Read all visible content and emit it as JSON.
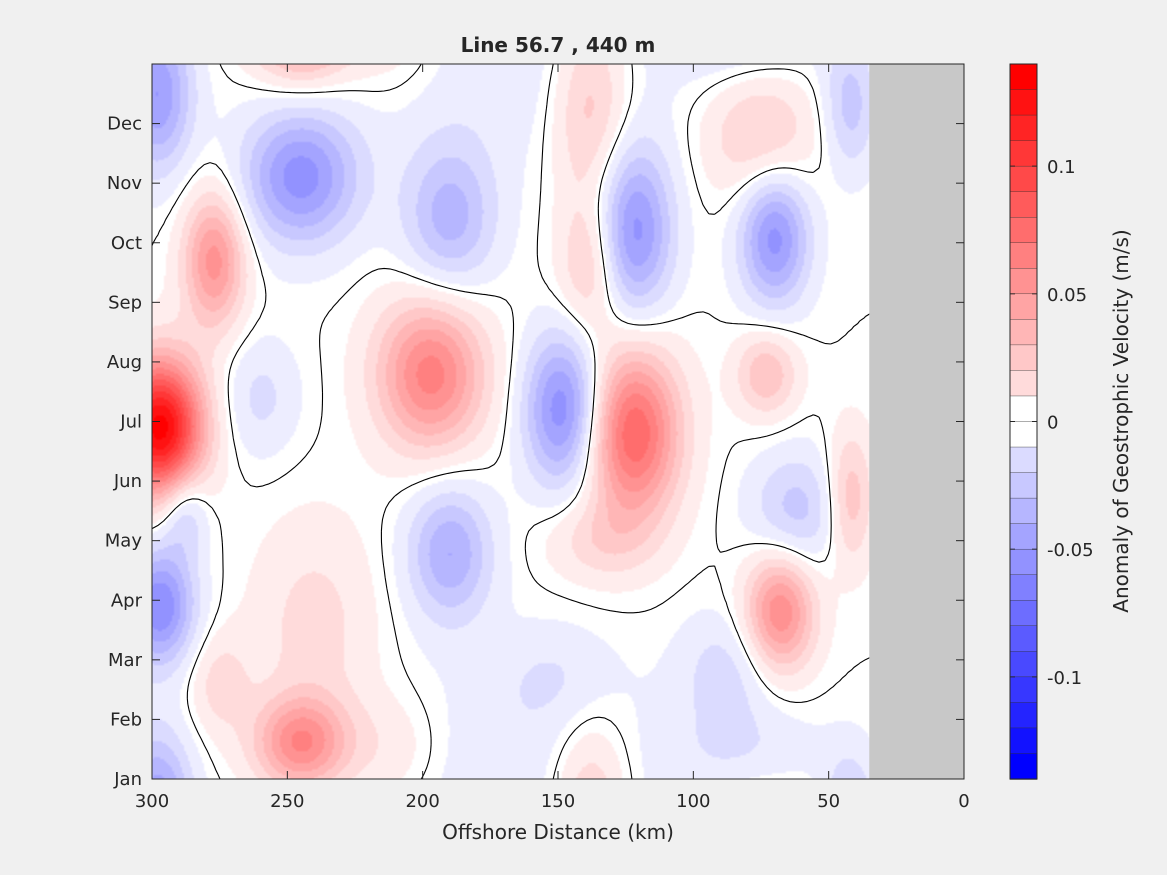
{
  "chart_data": {
    "type": "heatmap",
    "title": "Line 56.7 , 440 m",
    "xlabel": "Offshore Distance (km)",
    "ylabel": "",
    "x_direction": "reversed",
    "xlim": [
      0,
      300
    ],
    "x_ticks": [
      300,
      250,
      200,
      150,
      100,
      50,
      0
    ],
    "y_ticks": [
      "Jan",
      "Feb",
      "Mar",
      "Apr",
      "May",
      "Jun",
      "Jul",
      "Aug",
      "Sep",
      "Oct",
      "Nov",
      "Dec"
    ],
    "no_data_region_km": [
      0,
      35
    ],
    "colorbar": {
      "label": "Anomaly of Geostrophic Velocity (m/s)",
      "range": [
        -0.14,
        0.14
      ],
      "ticks": [
        0.1,
        0.05,
        0,
        -0.05,
        -0.1
      ],
      "tick_labels": [
        "0.1",
        "0.05",
        "0",
        "-0.05",
        "-0.1"
      ],
      "step": 0.01,
      "positive_color": "#ff0000",
      "negative_color": "#0000ff",
      "zero_color": "#ffffff"
    },
    "anomalies": [
      {
        "x": 297,
        "month": 5.9,
        "value": 0.14,
        "sx": 11,
        "sy": 0.8
      },
      {
        "x": 277,
        "month": 8.7,
        "value": 0.06,
        "sx": 8,
        "sy": 0.8
      },
      {
        "x": 298,
        "month": 11.5,
        "value": -0.055,
        "sx": 9,
        "sy": 0.9
      },
      {
        "x": 297,
        "month": 2.9,
        "value": -0.065,
        "sx": 9,
        "sy": 0.7
      },
      {
        "x": 288,
        "month": 4.5,
        "value": -0.03,
        "sx": 6,
        "sy": 0.5
      },
      {
        "x": 245,
        "month": 10.1,
        "value": -0.06,
        "sx": 15,
        "sy": 0.8
      },
      {
        "x": 245,
        "month": 12.7,
        "value": 0.035,
        "sx": 12,
        "sy": 0.5
      },
      {
        "x": 212,
        "month": 12.5,
        "value": 0.015,
        "sx": 14,
        "sy": 0.7
      },
      {
        "x": 190,
        "month": 9.4,
        "value": -0.04,
        "sx": 12,
        "sy": 0.9
      },
      {
        "x": 197,
        "month": 6.8,
        "value": 0.07,
        "sx": 14,
        "sy": 0.9
      },
      {
        "x": 190,
        "month": 3.8,
        "value": -0.045,
        "sx": 11,
        "sy": 0.8
      },
      {
        "x": 148,
        "month": 6.2,
        "value": -0.065,
        "sx": 10,
        "sy": 0.9
      },
      {
        "x": 138,
        "month": 11.3,
        "value": 0.035,
        "sx": 10,
        "sy": 1.2
      },
      {
        "x": 138,
        "month": 8.6,
        "value": 0.03,
        "sx": 8,
        "sy": 0.8
      },
      {
        "x": 122,
        "month": 9.2,
        "value": -0.06,
        "sx": 10,
        "sy": 1.0
      },
      {
        "x": 122,
        "month": 5.8,
        "value": 0.085,
        "sx": 12,
        "sy": 1.0
      },
      {
        "x": 135,
        "month": 4.0,
        "value": 0.02,
        "sx": 14,
        "sy": 0.5
      },
      {
        "x": 75,
        "month": 10.8,
        "value": 0.03,
        "sx": 14,
        "sy": 0.8
      },
      {
        "x": 70,
        "month": 9.1,
        "value": -0.06,
        "sx": 9,
        "sy": 0.8
      },
      {
        "x": 73,
        "month": 6.8,
        "value": 0.035,
        "sx": 8,
        "sy": 0.5
      },
      {
        "x": 68,
        "month": 2.8,
        "value": 0.065,
        "sx": 9,
        "sy": 0.7
      },
      {
        "x": 88,
        "month": 1.8,
        "value": -0.02,
        "sx": 12,
        "sy": 0.7
      },
      {
        "x": 62,
        "month": 4.5,
        "value": -0.03,
        "sx": 12,
        "sy": 0.7
      },
      {
        "x": 42,
        "month": 4.7,
        "value": 0.035,
        "sx": 6,
        "sy": 0.8
      },
      {
        "x": 42,
        "month": 11.3,
        "value": -0.03,
        "sx": 7,
        "sy": 0.8
      },
      {
        "x": 240,
        "month": 2.5,
        "value": 0.02,
        "sx": 16,
        "sy": 1.3
      },
      {
        "x": 245,
        "month": 0.4,
        "value": 0.03,
        "sx": 12,
        "sy": 0.6
      },
      {
        "x": 165,
        "month": 12.2,
        "value": -0.012,
        "sx": 40,
        "sy": 1.4
      },
      {
        "x": 80,
        "month": 12.4,
        "value": -0.015,
        "sx": 20,
        "sy": 0.6
      },
      {
        "x": 260,
        "month": 6.4,
        "value": -0.018,
        "sx": 10,
        "sy": 0.7
      },
      {
        "x": 275,
        "month": 1.6,
        "value": 0.02,
        "sx": 8,
        "sy": 0.6
      },
      {
        "x": 150,
        "month": 1.7,
        "value": -0.012,
        "sx": 15,
        "sy": 0.6
      }
    ]
  }
}
